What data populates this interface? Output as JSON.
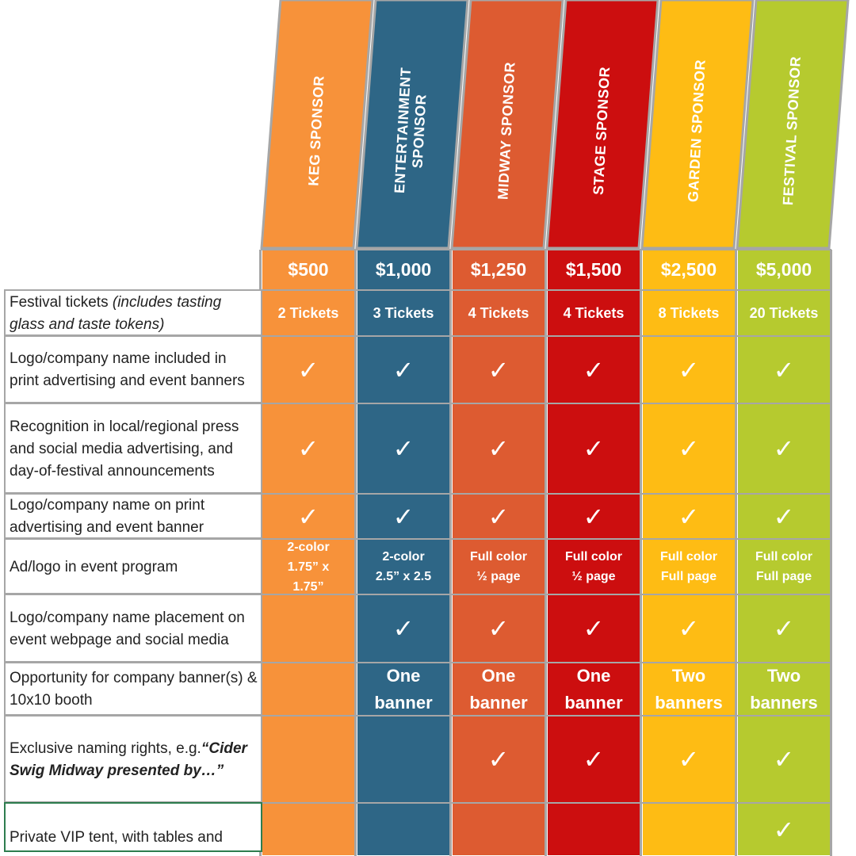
{
  "colors": [
    "#F7923A",
    "#2E6686",
    "#DD5B31",
    "#CC0E0F",
    "#FEBC14",
    "#B6CA2F"
  ],
  "sponsors": [
    {
      "header": "KEG SPONSOR",
      "price": "$500"
    },
    {
      "header": "ENTERTAINMENT\nSPONSOR",
      "price": "$1,000"
    },
    {
      "header": "MIDWAY SPONSOR",
      "price": "$1,250"
    },
    {
      "header": "STAGE SPONSOR",
      "price": "$1,500"
    },
    {
      "header": "GARDEN SPONSOR",
      "price": "$2,500"
    },
    {
      "header": "FESTIVAL SPONSOR",
      "price": "$5,000"
    }
  ],
  "rows": [
    {
      "label": "Festival tickets",
      "label_italic": " (includes tasting glass and taste tokens)",
      "values": [
        "2 Tickets",
        "3 Tickets",
        "4 Tickets",
        "4 Tickets",
        "8 Tickets",
        "20 Tickets"
      ]
    },
    {
      "label": "Logo/company name included in print advertising and event banners",
      "values": [
        "✓",
        "✓",
        "✓",
        "✓",
        "✓",
        "✓"
      ]
    },
    {
      "label": "Recognition in local/regional press and social media advertising, and day-of-festival announcements",
      "values": [
        "✓",
        "✓",
        "✓",
        "✓",
        "✓",
        "✓"
      ]
    },
    {
      "label": "Logo/company name on print advertising and event banner",
      "values": [
        "✓",
        "✓",
        "✓",
        "✓",
        "✓",
        "✓"
      ]
    },
    {
      "label": "Ad/logo in event program",
      "values": [
        "2-color\n1.75” x\n1.75”",
        "2-color\n2.5” x 2.5",
        "Full color\n½ page",
        "Full color\n½ page",
        "Full color\nFull page",
        "Full color\nFull page"
      ]
    },
    {
      "label": "Logo/company name placement on event webpage and social media",
      "values": [
        "",
        "✓",
        "✓",
        "✓",
        "✓",
        "✓"
      ]
    },
    {
      "label": "Opportunity for company banner(s) & 10x10 booth",
      "values": [
        "",
        "One\nbanner",
        "One\nbanner",
        "One\nbanner",
        "Two\nbanners",
        "Two\nbanners"
      ]
    },
    {
      "label": "Exclusive naming rights, e.g.",
      "label_bold_italic": "“Cider Swig Midway presented by…”",
      "values": [
        "",
        "",
        "✓",
        "✓",
        "✓",
        "✓"
      ]
    },
    {
      "label": "Private VIP tent, with tables and",
      "values": [
        "",
        "",
        "",
        "",
        "",
        "✓"
      ]
    }
  ]
}
